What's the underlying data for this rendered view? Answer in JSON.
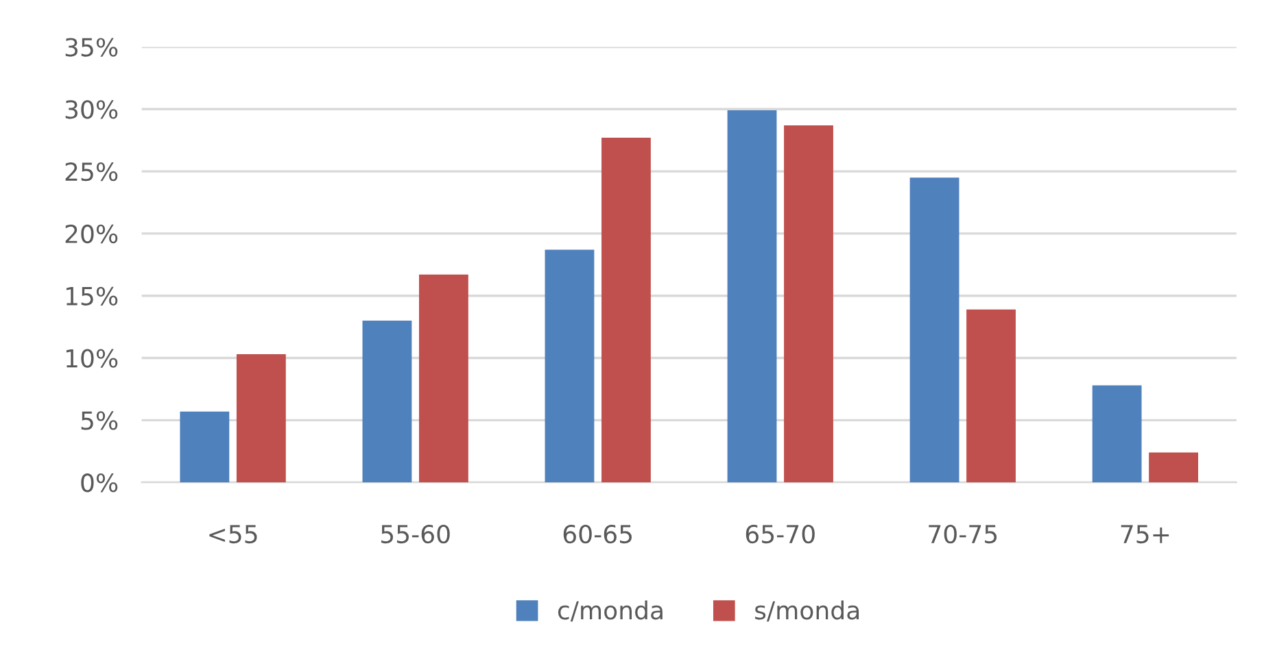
{
  "chart_data": {
    "type": "bar",
    "categories": [
      "<55",
      "55-60",
      "60-65",
      "65-70",
      "70-75",
      "75+"
    ],
    "series": [
      {
        "name": "c/monda",
        "color": "#4f81bd",
        "values": [
          5.7,
          13.0,
          18.7,
          29.9,
          24.5,
          7.8
        ]
      },
      {
        "name": "s/monda",
        "color": "#c0504d",
        "values": [
          10.3,
          16.7,
          27.7,
          28.7,
          13.9,
          2.4
        ]
      }
    ],
    "ylim": [
      0,
      35
    ],
    "yticks": [
      {
        "value": 0,
        "label": "0%"
      },
      {
        "value": 5,
        "label": "5%"
      },
      {
        "value": 10,
        "label": "10%"
      },
      {
        "value": 15,
        "label": "15%"
      },
      {
        "value": 20,
        "label": "20%"
      },
      {
        "value": 25,
        "label": "25%"
      },
      {
        "value": 30,
        "label": "30%"
      },
      {
        "value": 35,
        "label": "35%"
      }
    ],
    "grid": "y",
    "legend": "bottom"
  }
}
